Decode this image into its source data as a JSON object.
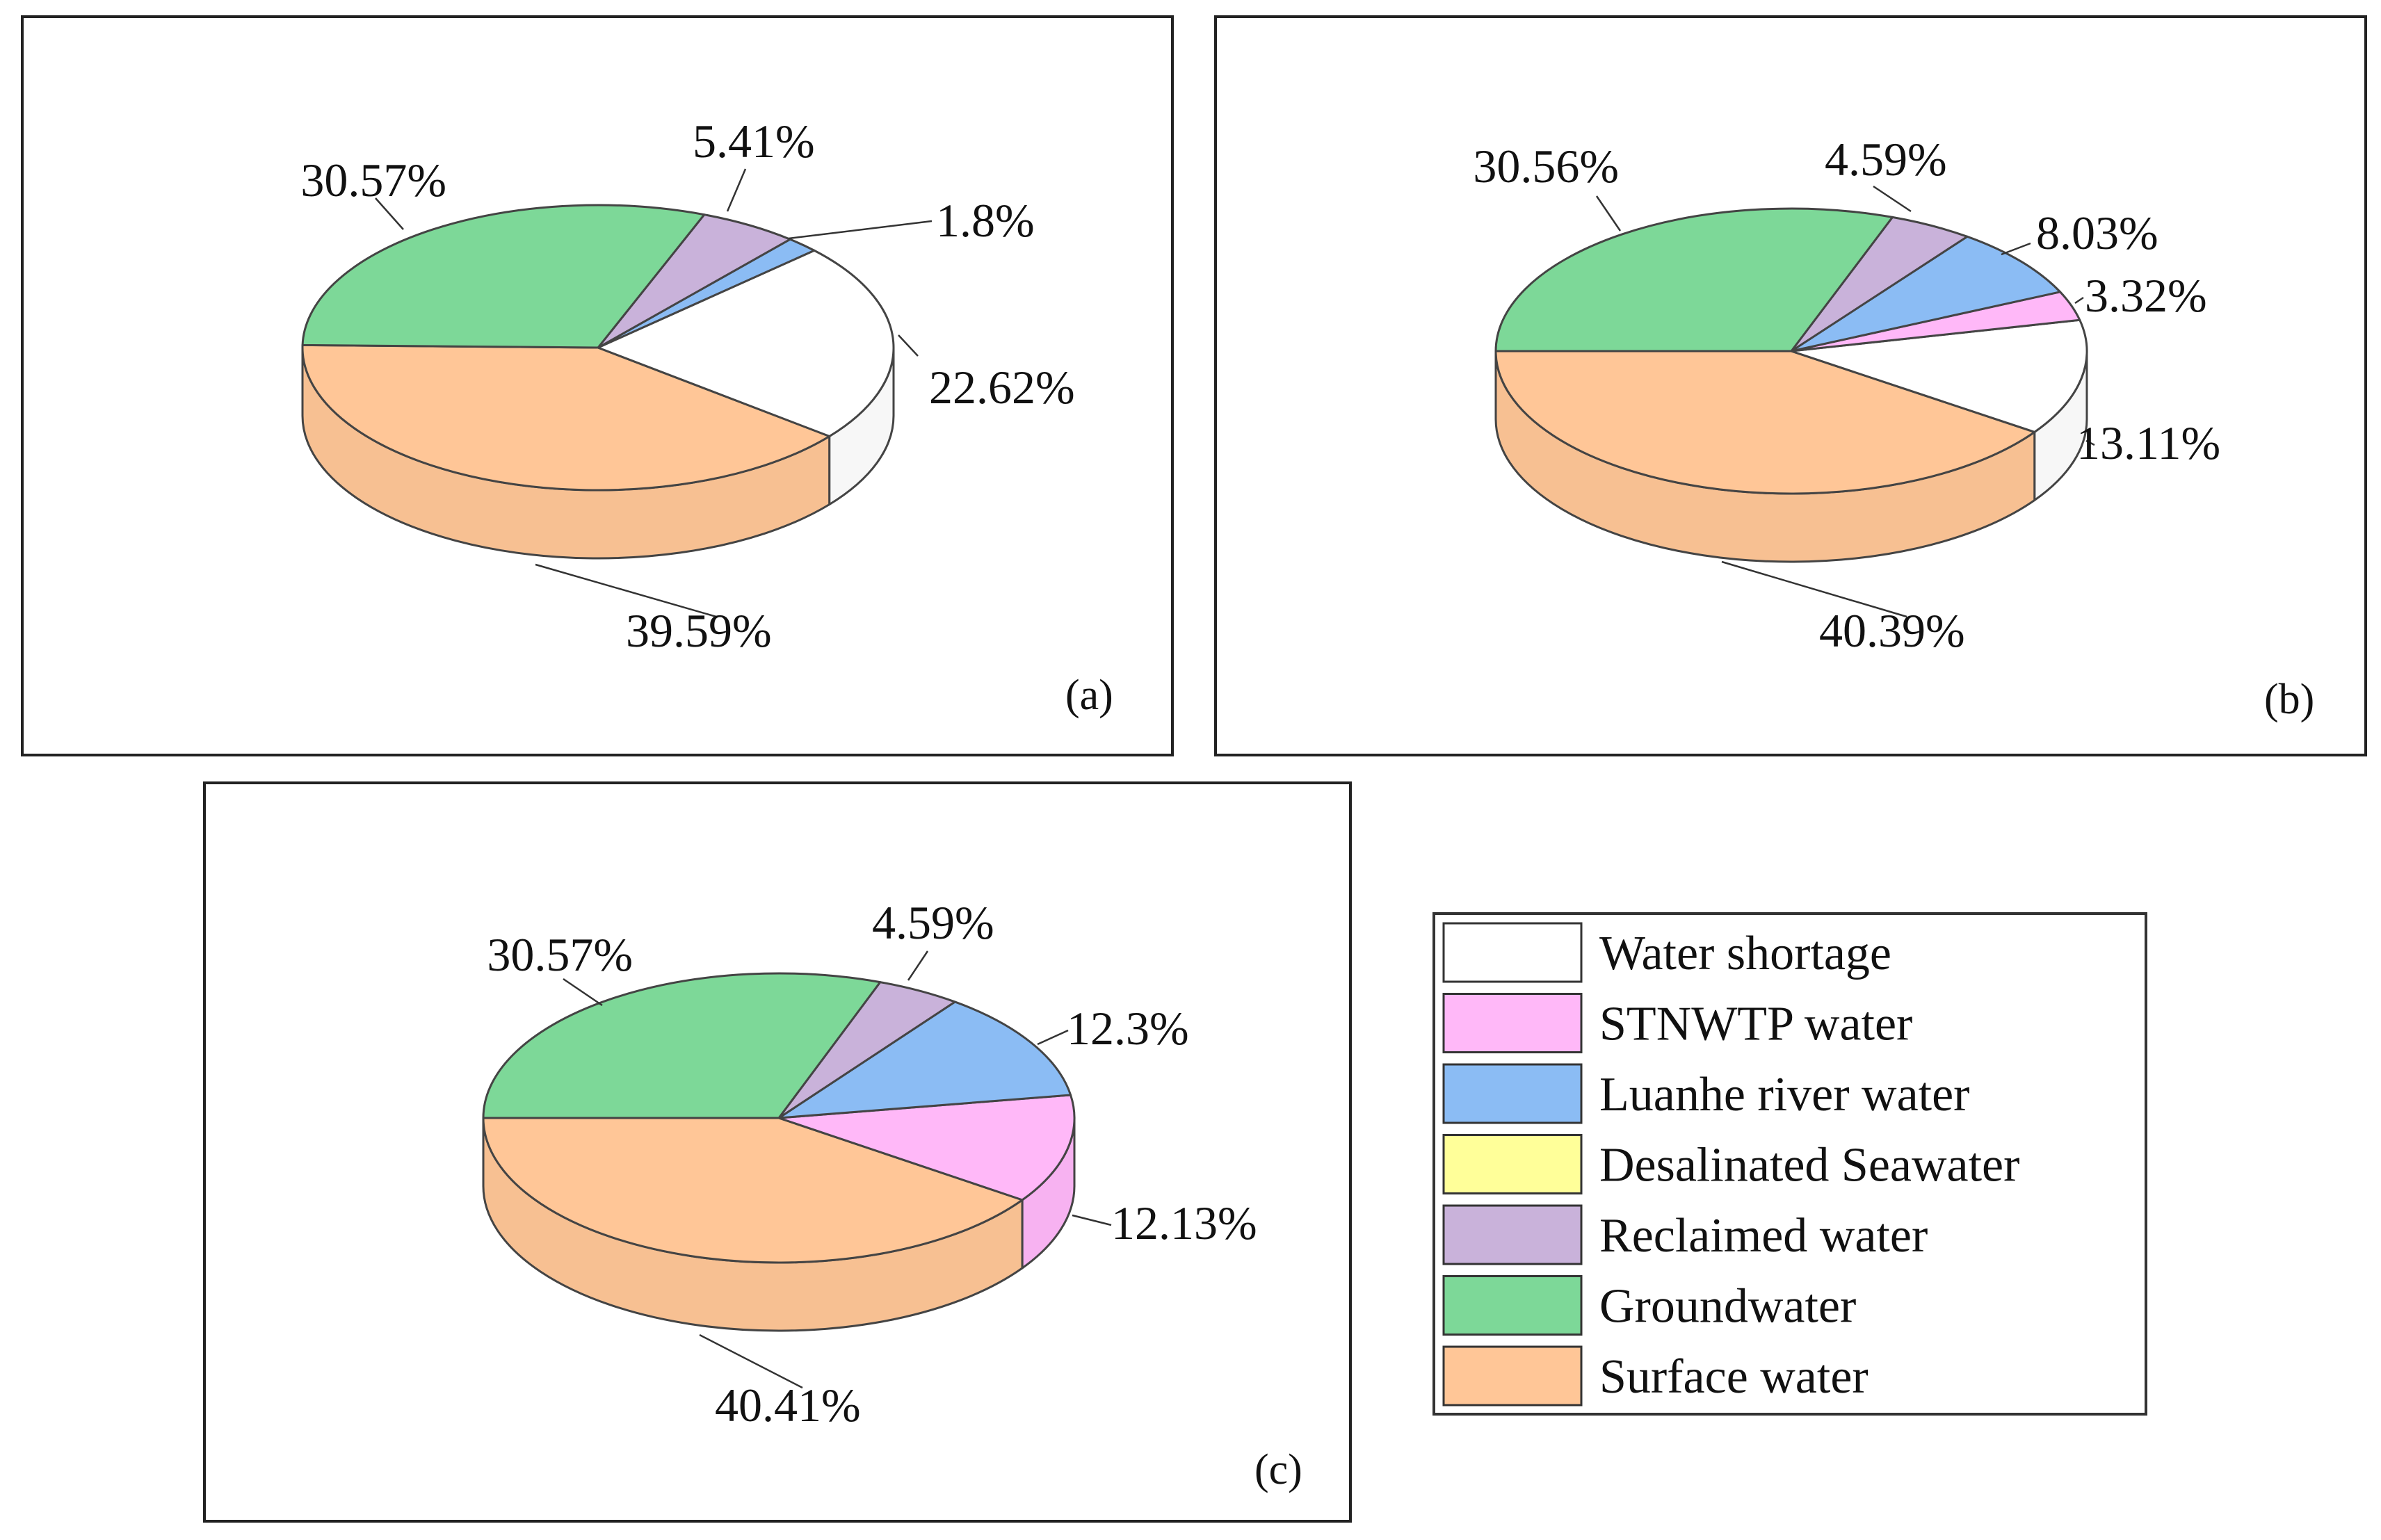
{
  "colors": {
    "Water shortage": "#ffffff",
    "STNWTP water": "#ffb8f8",
    "Luanhe river water": "#8bbcf4",
    "Desalinated Seawater": "#ffff99",
    "Reclaimed water": "#c9b2da",
    "Groundwater": "#7dd898",
    "Surface water": "#ffc697"
  },
  "legend": {
    "items": [
      "Water shortage",
      "STNWTP water",
      "Luanhe river water",
      "Desalinated Seawater",
      "Reclaimed water",
      "Groundwater",
      "Surface water"
    ]
  },
  "chart_data": [
    {
      "type": "pie",
      "panel": "(a)",
      "slices": [
        {
          "name": "Surface water",
          "value": 39.59,
          "label": "39.59%"
        },
        {
          "name": "Water shortage",
          "value": 22.62,
          "label": "22.62%"
        },
        {
          "name": "Luanhe river water",
          "value": 1.8,
          "label": "1.8%"
        },
        {
          "name": "Reclaimed water",
          "value": 5.41,
          "label": "5.41%"
        },
        {
          "name": "Groundwater",
          "value": 30.57,
          "label": "30.57%"
        }
      ]
    },
    {
      "type": "pie",
      "panel": "(b)",
      "slices": [
        {
          "name": "Surface water",
          "value": 40.39,
          "label": "40.39%"
        },
        {
          "name": "Water shortage",
          "value": 13.11,
          "label": "13.11%"
        },
        {
          "name": "STNWTP water",
          "value": 3.32,
          "label": "3.32%"
        },
        {
          "name": "Luanhe river water",
          "value": 8.03,
          "label": "8.03%"
        },
        {
          "name": "Reclaimed water",
          "value": 4.59,
          "label": "4.59%"
        },
        {
          "name": "Groundwater",
          "value": 30.56,
          "label": "30.56%"
        }
      ]
    },
    {
      "type": "pie",
      "panel": "(c)",
      "slices": [
        {
          "name": "Surface water",
          "value": 40.41,
          "label": "40.41%"
        },
        {
          "name": "STNWTP water",
          "value": 12.13,
          "label": "12.13%"
        },
        {
          "name": "Luanhe river water",
          "value": 12.3,
          "label": "12.3%"
        },
        {
          "name": "Reclaimed water",
          "value": 4.59,
          "label": "4.59%"
        },
        {
          "name": "Groundwater",
          "value": 30.57,
          "label": "30.57%"
        }
      ]
    }
  ]
}
